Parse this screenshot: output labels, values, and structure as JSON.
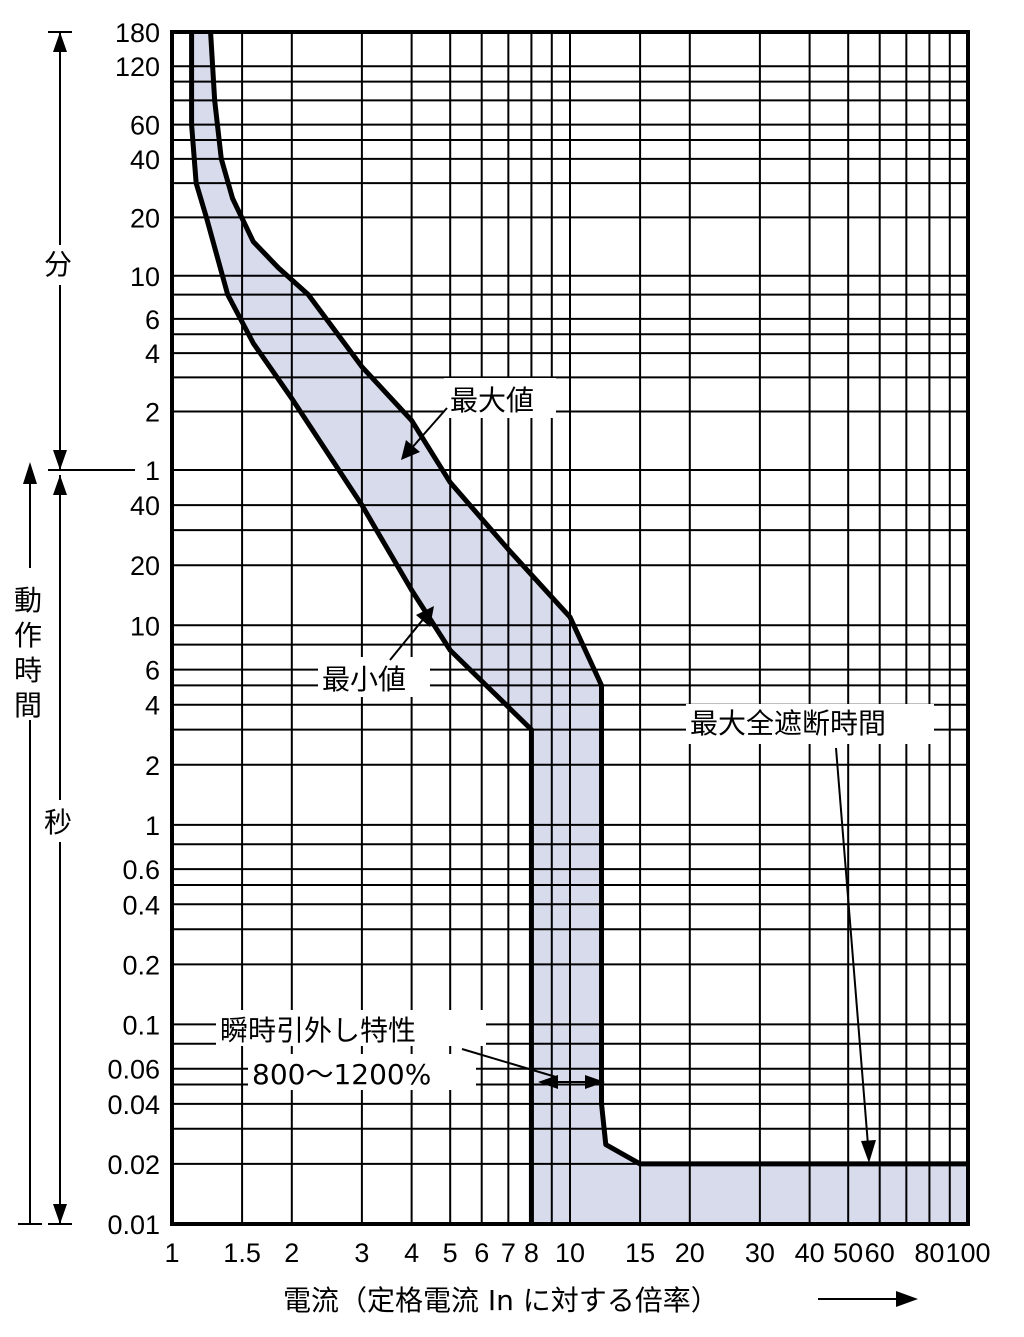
{
  "chart_data": {
    "type": "line",
    "xscale": "log",
    "yscale": "log",
    "xlim": [
      1,
      100
    ],
    "grid": true,
    "x_ticks": [
      {
        "v": 1,
        "label": "1"
      },
      {
        "v": 1.5,
        "label": "1.5"
      },
      {
        "v": 2,
        "label": "2"
      },
      {
        "v": 3,
        "label": "3"
      },
      {
        "v": 4,
        "label": "4"
      },
      {
        "v": 5,
        "label": "5"
      },
      {
        "v": 6,
        "label": "6"
      },
      {
        "v": 7,
        "label": "7"
      },
      {
        "v": 8,
        "label": "8"
      },
      {
        "v": 10,
        "label": "10"
      },
      {
        "v": 15,
        "label": "15"
      },
      {
        "v": 20,
        "label": "20"
      },
      {
        "v": 30,
        "label": "30"
      },
      {
        "v": 40,
        "label": "40"
      },
      {
        "v": 50,
        "label": "50"
      },
      {
        "v": 60,
        "label": "60"
      },
      {
        "v": 80,
        "label": "80"
      },
      {
        "v": 100,
        "label": "100"
      }
    ],
    "xlabel": "電流（定格電流 In に対する倍率）",
    "minute_ticks": [
      "180",
      "120",
      "60",
      "40",
      "20",
      "10",
      "6",
      "4",
      "2",
      "1"
    ],
    "second_ticks": [
      "40",
      "20",
      "10",
      "6",
      "4",
      "2",
      "1",
      "0.6",
      "0.4",
      "0.2",
      "0.1",
      "0.06",
      "0.04",
      "0.02",
      "0.01"
    ],
    "ylabel_min": "分",
    "ylabel_op": [
      "動",
      "作",
      "時",
      "間"
    ],
    "ylabel_sec": "秒",
    "annotations": {
      "max_label": "最大値",
      "min_label": "最小値",
      "total_break": "最大全遮断時間",
      "instant_line1": "瞬時引外し特性",
      "instant_line2": "800〜1200%"
    },
    "series": [
      {
        "name": "最大値",
        "points": [
          [
            1.25,
            10800
          ],
          [
            1.28,
            4800
          ],
          [
            1.33,
            2400
          ],
          [
            1.42,
            1500
          ],
          [
            1.6,
            900
          ],
          [
            1.85,
            660
          ],
          [
            2.2,
            480
          ],
          [
            3.0,
            204
          ],
          [
            4.0,
            108
          ],
          [
            5.0,
            52
          ],
          [
            7.0,
            24
          ],
          [
            10.0,
            11
          ],
          [
            12.0,
            5
          ],
          [
            12.0,
            0.04
          ],
          [
            12.3,
            0.025
          ],
          [
            15.0,
            0.02
          ],
          [
            100,
            0.02
          ]
        ]
      },
      {
        "name": "最小値",
        "points": [
          [
            1.12,
            10800
          ],
          [
            1.12,
            3600
          ],
          [
            1.15,
            1800
          ],
          [
            1.22,
            1200
          ],
          [
            1.38,
            480
          ],
          [
            1.6,
            270
          ],
          [
            2.0,
            140
          ],
          [
            3.0,
            40
          ],
          [
            4.0,
            15
          ],
          [
            5.0,
            7.5
          ],
          [
            6.5,
            4.5
          ],
          [
            8.0,
            3.0
          ],
          [
            8.0,
            0.01
          ]
        ]
      }
    ],
    "band_color": "#d7dbec",
    "line_color": "#000000"
  }
}
